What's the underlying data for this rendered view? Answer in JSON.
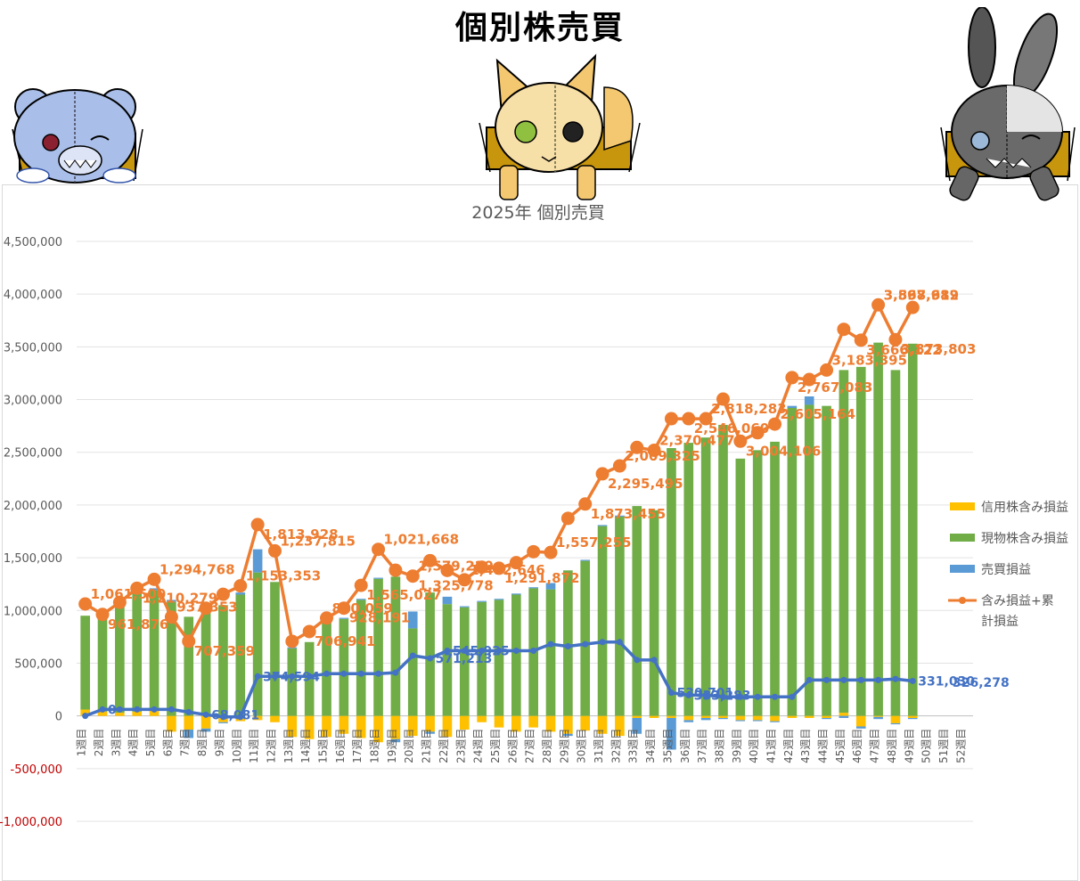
{
  "page": {
    "title": "個別株売買"
  },
  "colors": {
    "shinyo": "#FFC000",
    "genbutsu": "#70AD47",
    "baibai": "#5B9BD5",
    "baibai_line": "#4472C4",
    "total": "#ED7D31",
    "negative_tick": "#C00000"
  },
  "mascots": {
    "left": "blue-bear-mascot-icon",
    "center": "fox-mascot-icon",
    "right": "gray-rabbit-mascot-icon"
  },
  "chart_data": {
    "type": "bar",
    "title": "2025年 個別売買",
    "xlabel": "",
    "ylabel": "",
    "ylim": [
      -1000000,
      4500000
    ],
    "yticks": [
      "4,500,000",
      "4,000,000",
      "3,500,000",
      "3,000,000",
      "2,500,000",
      "2,000,000",
      "1,500,000",
      "1,000,000",
      "500,000",
      "0",
      "-500,000",
      "-1,000,000"
    ],
    "grid": true,
    "legend_position": "right",
    "categories": [
      "1週目",
      "2週目",
      "3週目",
      "4週目",
      "5週目",
      "6週目",
      "7週目",
      "8週目",
      "9週目",
      "10週目",
      "11週目",
      "12週目",
      "13週目",
      "14週目",
      "15週目",
      "16週目",
      "17週目",
      "18週目",
      "19週目",
      "20週目",
      "21週目",
      "22週目",
      "23週目",
      "24週目",
      "25週目",
      "26週目",
      "27週目",
      "28週目",
      "29週目",
      "30週目",
      "31週目",
      "32週目",
      "33週目",
      "34週目",
      "35週目",
      "36週目",
      "37週目",
      "38週目",
      "39週目",
      "40週目",
      "41週目",
      "42週目",
      "43週目",
      "44週目",
      "45週目",
      "46週目",
      "47週目",
      "48週目",
      "49週目",
      "50週目",
      "51週目",
      "52週目"
    ],
    "series": [
      {
        "name": "信用株含み損益",
        "kind": "bar",
        "values": [
          60000,
          40000,
          30000,
          40000,
          70000,
          -150000,
          -130000,
          -120000,
          -60000,
          -50000,
          -40000,
          -60000,
          -200000,
          -220000,
          -200000,
          -170000,
          -210000,
          -250000,
          -220000,
          -190000,
          -150000,
          -200000,
          -130000,
          -60000,
          -110000,
          -150000,
          -110000,
          -150000,
          -170000,
          -140000,
          -170000,
          -190000,
          -20000,
          -20000,
          -20000,
          -40000,
          -20000,
          -20000,
          -40000,
          -40000,
          -50000,
          -20000,
          -20000,
          -20000,
          30000,
          -100000,
          -10000,
          -70000,
          -20000,
          0,
          0,
          0
        ]
      },
      {
        "name": "現物株含み損益",
        "kind": "bar",
        "values": [
          890000,
          880000,
          1000000,
          1130000,
          1120000,
          1080000,
          940000,
          1010000,
          1050000,
          1150000,
          1360000,
          1270000,
          640000,
          700000,
          880000,
          920000,
          1100000,
          1300000,
          1320000,
          830000,
          1170000,
          1060000,
          1030000,
          1080000,
          1100000,
          1150000,
          1210000,
          1200000,
          1380000,
          1470000,
          1800000,
          1890000,
          1990000,
          1950000,
          2540000,
          2590000,
          2640000,
          2760000,
          2440000,
          2520000,
          2600000,
          2920000,
          2950000,
          2940000,
          3250000,
          3310000,
          3540000,
          3280000,
          3530000,
          0,
          0,
          0
        ]
      },
      {
        "name": "売買損益",
        "kind": "bar",
        "values": [
          0,
          20000,
          10000,
          20000,
          20000,
          20000,
          -80000,
          -30000,
          -10000,
          20000,
          220000,
          0,
          10000,
          0,
          10000,
          10000,
          10000,
          10000,
          -30000,
          160000,
          -20000,
          70000,
          10000,
          10000,
          10000,
          10000,
          10000,
          60000,
          -20000,
          10000,
          10000,
          10000,
          -150000,
          0,
          -300000,
          -20000,
          -20000,
          -10000,
          -10000,
          -10000,
          -10000,
          20000,
          80000,
          -10000,
          -20000,
          -20000,
          -20000,
          -10000,
          -10000,
          0,
          0,
          0
        ]
      },
      {
        "name": "含み損益+累計損益",
        "kind": "line",
        "values": [
          1061500,
          961876,
          1077000,
          1210279,
          1294768,
          937353,
          707359,
          1021458,
          1153353,
          1233353,
          1813928,
          1565027,
          706941,
          800059,
          928191,
          1021668,
          1237815,
          1579220,
          1381234,
          1325778,
          1472646,
          1379620,
          1291000,
          1410000,
          1400000,
          1453000,
          1557255,
          1550000,
          1873455,
          2009325,
          2295495,
          2370477,
          2546060,
          2518927,
          2818283,
          2818283,
          2818283,
          3004106,
          2605164,
          2685454,
          2767083,
          3208000,
          3190000,
          3280000,
          3666122,
          3563368,
          3897989,
          3568612,
          3873803,
          null,
          null,
          null
        ]
      },
      {
        "name": "累計売買損益",
        "kind": "line",
        "values": [
          0,
          61000,
          61000,
          61000,
          61000,
          61000,
          36000,
          11000,
          -10000,
          -10000,
          374594,
          374594,
          374594,
          374594,
          400000,
          400000,
          400000,
          400000,
          410000,
          571213,
          545925,
          618000,
          618000,
          618000,
          618000,
          618000,
          618000,
          680000,
          660000,
          680000,
          700000,
          700000,
          530000,
          530000,
          220000,
          196000,
          196000,
          180000,
          180000,
          180000,
          180000,
          180000,
          340000,
          340000,
          340000,
          340000,
          340000,
          350000,
          331030,
          null,
          null,
          null
        ]
      }
    ],
    "labels_orange": [
      {
        "i": 0,
        "text": "1,061,500"
      },
      {
        "i": 1,
        "text": "961,876"
      },
      {
        "i": 4,
        "text": "1,294,768"
      },
      {
        "i": 3,
        "text": "1,210,279"
      },
      {
        "i": 5,
        "text": "937,353"
      },
      {
        "i": 6,
        "text": "707,359"
      },
      {
        "i": 9,
        "text": "1,153,353"
      },
      {
        "i": 10,
        "text": "1,813,928"
      },
      {
        "i": 11,
        "text": "1,237,815"
      },
      {
        "i": 13,
        "text": "706,941"
      },
      {
        "i": 14,
        "text": "800,059"
      },
      {
        "i": 15,
        "text": "928,191"
      },
      {
        "i": 17,
        "text": "1,021,668"
      },
      {
        "i": 16,
        "text": "1,565,027"
      },
      {
        "i": 19,
        "text": "1,579,220"
      },
      {
        "i": 19,
        "text": "1,325,778"
      },
      {
        "i": 22,
        "text": "1,472,646"
      },
      {
        "i": 24,
        "text": "1,291,872"
      },
      {
        "i": 27,
        "text": "1,557,255"
      },
      {
        "i": 29,
        "text": "1,873,455"
      },
      {
        "i": 31,
        "text": "2,009,325"
      },
      {
        "i": 30,
        "text": "2,295,495"
      },
      {
        "i": 33,
        "text": "2,370,477"
      },
      {
        "i": 35,
        "text": "2,546,060"
      },
      {
        "i": 36,
        "text": "2,818,283"
      },
      {
        "i": 38,
        "text": "3,004,106"
      },
      {
        "i": 40,
        "text": "2,605,164"
      },
      {
        "i": 41,
        "text": "2,767,083"
      },
      {
        "i": 43,
        "text": "3,183,395"
      },
      {
        "i": 45,
        "text": "3,666,122"
      },
      {
        "i": 46,
        "text": "3,897,989"
      },
      {
        "i": 47,
        "text": "3,873,803"
      },
      {
        "i": 46,
        "text": "3,568,612"
      }
    ],
    "labels_blue": [
      {
        "i": 1,
        "text": "0"
      },
      {
        "i": 7,
        "text": "68,081"
      },
      {
        "i": 10,
        "text": "374,594"
      },
      {
        "i": 20,
        "text": "571,213"
      },
      {
        "i": 21,
        "text": "545,925"
      },
      {
        "i": 34,
        "text": "530,701"
      },
      {
        "i": 35,
        "text": "333,283"
      },
      {
        "i": 48,
        "text": "331,030"
      },
      {
        "i": 50,
        "text": "326,278"
      }
    ]
  }
}
